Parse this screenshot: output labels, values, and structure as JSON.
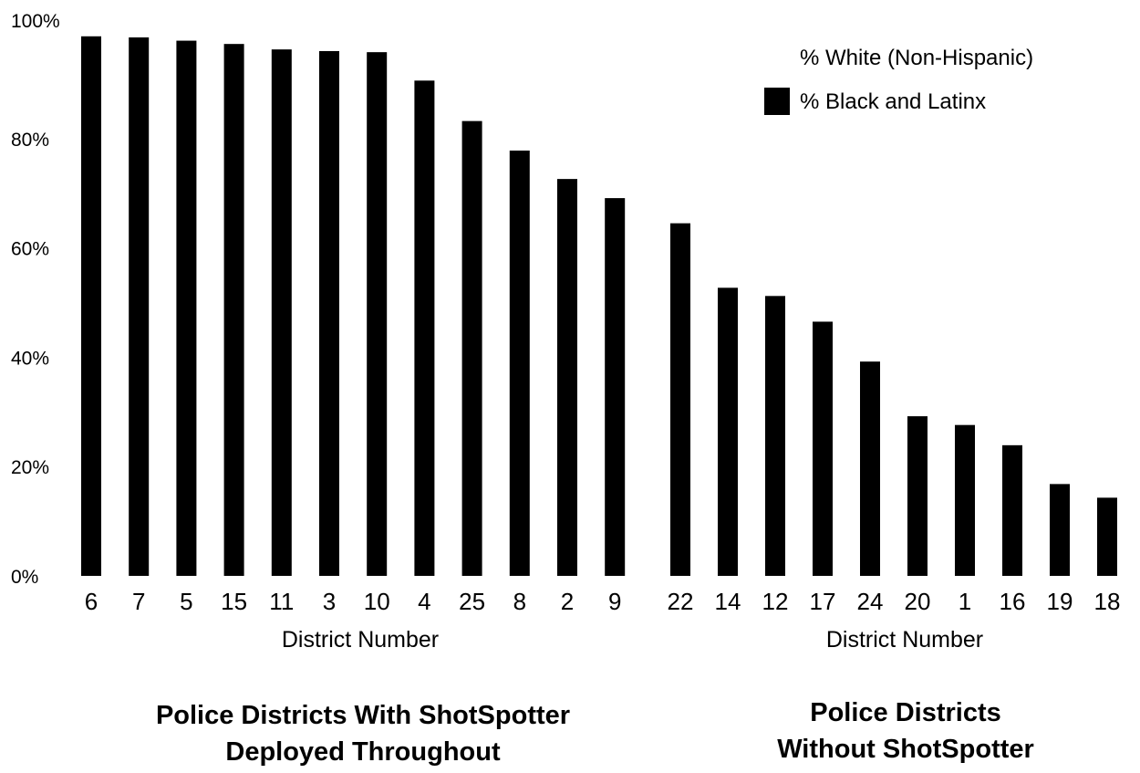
{
  "chart_data": {
    "type": "bar",
    "yaxis": {
      "min": 0,
      "max": 100,
      "ticks": [
        0,
        20,
        40,
        60,
        80,
        100
      ],
      "tick_labels": [
        "0%",
        "20%",
        "40%",
        "60%",
        "80%",
        "100%"
      ],
      "grid": false
    },
    "legend": {
      "placement": "top-right",
      "entries": [
        {
          "label": "% White (Non-Hispanic)",
          "color": "#ffffff"
        },
        {
          "label": "% Black and Latinx",
          "color": "#000000"
        }
      ]
    },
    "groups": [
      {
        "title_lines": [
          "Police Districts With ShotSpotter",
          "Deployed Throughout"
        ],
        "xlabel": "District Number",
        "categories": [
          "6",
          "7",
          "5",
          "15",
          "11",
          "3",
          "10",
          "4",
          "25",
          "8",
          "2",
          "9"
        ],
        "series": [
          {
            "name": "% Black and Latinx",
            "color": "#000000",
            "values": [
              98.7,
              98.5,
              97.9,
              97.3,
              96.3,
              96.0,
              95.8,
              90.6,
              83.2,
              77.8,
              72.6,
              69.1
            ]
          }
        ]
      },
      {
        "title_lines": [
          "Police Districts",
          "Without ShotSpotter"
        ],
        "xlabel": "District Number",
        "categories": [
          "22",
          "14",
          "12",
          "17",
          "24",
          "20",
          "1",
          "16",
          "19",
          "18"
        ],
        "series": [
          {
            "name": "% Black and Latinx",
            "color": "#000000",
            "values": [
              64.5,
              52.7,
              51.2,
              46.5,
              39.2,
              29.2,
              27.6,
              23.9,
              16.8,
              14.3
            ]
          }
        ]
      }
    ]
  }
}
